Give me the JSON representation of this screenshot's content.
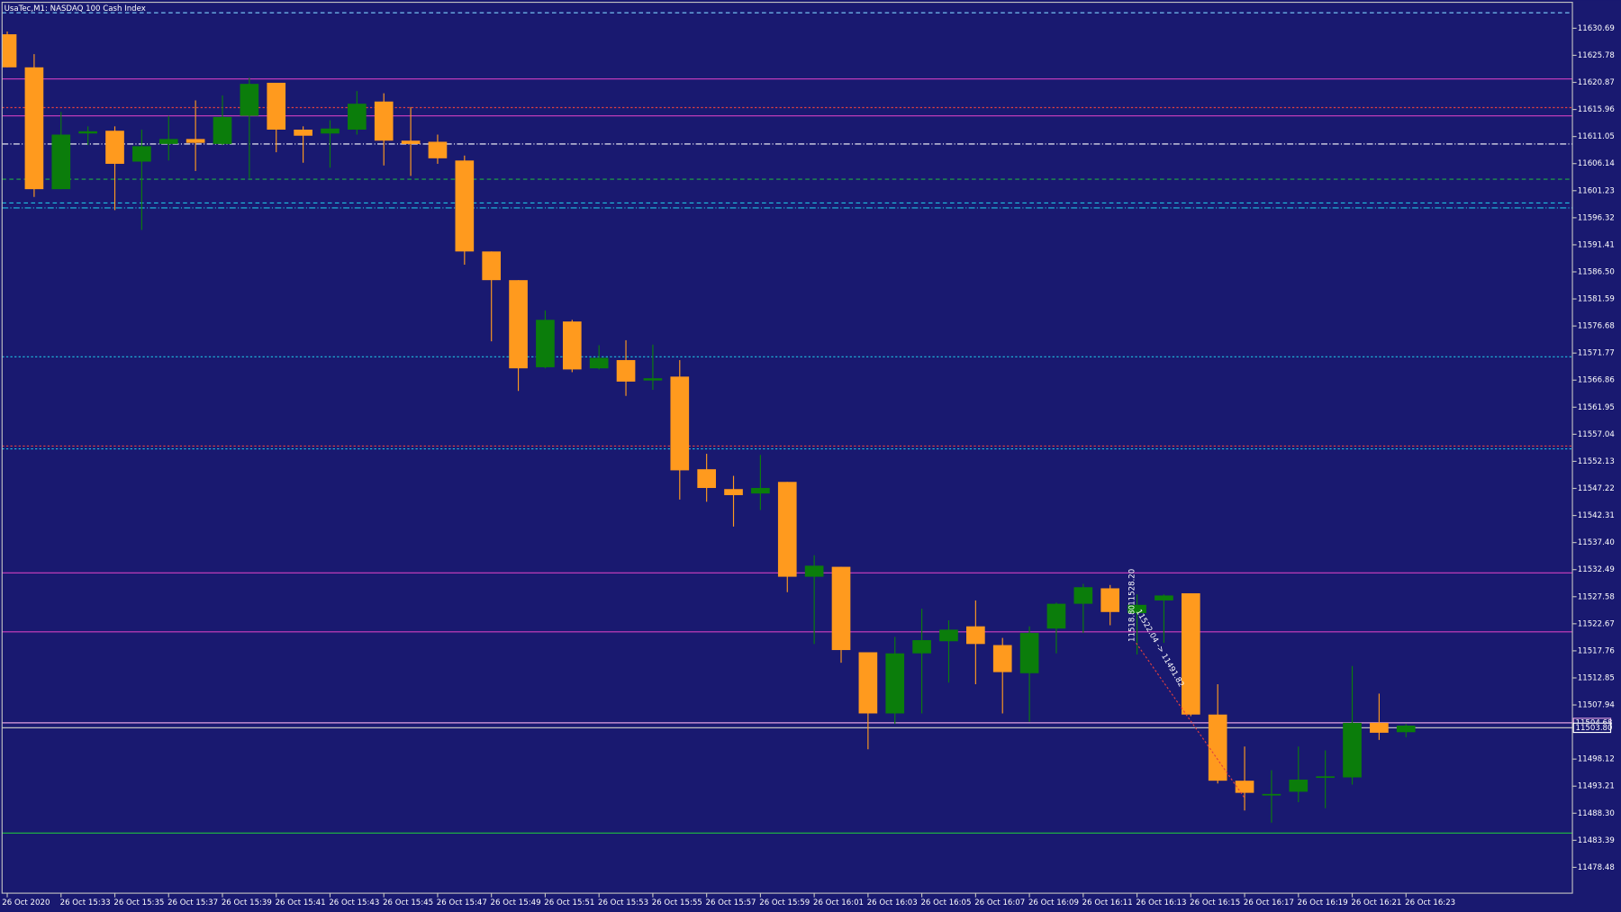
{
  "chart_data": {
    "type": "candlestick",
    "title": "UsaTec,M1:  NASDAQ 100 Cash Index",
    "up_color": "#0b7d0b",
    "down_color": "#ff9a1e",
    "categories": [
      "26 Oct 2020",
      null,
      "26 Oct 15:33",
      null,
      "26 Oct 15:35",
      null,
      "26 Oct 15:37",
      null,
      "26 Oct 15:39",
      null,
      "26 Oct 15:41",
      null,
      "26 Oct 15:43",
      null,
      "26 Oct 15:45",
      null,
      "26 Oct 15:47",
      null,
      "26 Oct 15:49",
      null,
      "26 Oct 15:51",
      null,
      "26 Oct 15:53",
      null,
      "26 Oct 15:55",
      null,
      "26 Oct 15:57",
      null,
      "26 Oct 15:59",
      null,
      "26 Oct 16:01",
      null,
      "26 Oct 16:03",
      null,
      "26 Oct 16:05",
      null,
      "26 Oct 16:07",
      null,
      "26 Oct 16:09",
      null,
      "26 Oct 16:11",
      null,
      "26 Oct 16:13",
      null,
      "26 Oct 16:15",
      null,
      "26 Oct 16:17",
      null,
      "26 Oct 16:19",
      null,
      "26 Oct 16:21",
      null,
      "26 Oct 16:23"
    ],
    "open": [
      11629.6,
      11623.6,
      11601.5,
      11611.6,
      11612.1,
      11606.5,
      11609.7,
      11610.6,
      11609.7,
      11614.8,
      11620.8,
      11612.3,
      11611.6,
      11612.3,
      11617.4,
      11610.3,
      11610.1,
      11606.7,
      11590.2,
      11585.0,
      11569.2,
      11577.5,
      11569.0,
      11570.5,
      11566.8,
      11567.5,
      11550.7,
      11547.1,
      11546.3,
      11548.4,
      11531.2,
      11533.0,
      11517.5,
      11506.4,
      11517.3,
      11519.5,
      11522.2,
      11518.8,
      11513.7,
      11521.8,
      11526.3,
      11529.1,
      11524.6,
      11526.9,
      11528.2,
      11506.2,
      11494.2,
      11491.6,
      11492.2,
      11494.8,
      11494.8,
      11504.7,
      11503.0
    ],
    "high": [
      11630.1,
      11626.0,
      11615.5,
      11612.9,
      11612.9,
      11612.3,
      11614.8,
      11617.6,
      11618.5,
      11621.7,
      11620.8,
      11612.9,
      11614.0,
      11619.3,
      11618.9,
      11616.4,
      11611.4,
      11607.6,
      11590.2,
      11585.0,
      11579.5,
      11577.8,
      11573.2,
      11574.1,
      11573.3,
      11570.5,
      11553.5,
      11549.5,
      11553.3,
      11548.4,
      11535.1,
      11533.0,
      11517.5,
      11520.3,
      11525.4,
      11523.3,
      11526.9,
      11520.1,
      11522.2,
      11526.5,
      11529.9,
      11529.7,
      11528.0,
      11528.0,
      11528.2,
      11511.7,
      11500.4,
      11496.1,
      11500.4,
      11499.7,
      11515.0,
      11510.0,
      11504.5
    ],
    "low": [
      11623.6,
      11600.1,
      11601.5,
      11609.5,
      11597.7,
      11594.1,
      11606.7,
      11604.8,
      11609.5,
      11603.5,
      11608.2,
      11606.3,
      11605.4,
      11611.4,
      11605.8,
      11603.9,
      11606.1,
      11587.8,
      11573.9,
      11564.9,
      11569.0,
      11568.3,
      11568.8,
      11564.0,
      11565.1,
      11545.2,
      11544.8,
      11540.3,
      11543.3,
      11528.4,
      11519.0,
      11515.6,
      11499.9,
      11504.5,
      11506.4,
      11512.0,
      11511.7,
      11506.4,
      11504.9,
      11517.3,
      11521.0,
      11522.4,
      11517.1,
      11519.2,
      11505.9,
      11493.7,
      11488.8,
      11486.6,
      11490.3,
      11489.2,
      11493.5,
      11501.6,
      11502.1
    ],
    "close": [
      11623.6,
      11601.5,
      11611.4,
      11612.0,
      11606.1,
      11609.3,
      11610.6,
      11609.9,
      11614.6,
      11620.6,
      11612.3,
      11611.2,
      11612.5,
      11617.0,
      11610.3,
      11609.7,
      11607.1,
      11590.2,
      11585.0,
      11569.0,
      11577.8,
      11568.8,
      11570.9,
      11566.6,
      11567.2,
      11550.5,
      11547.3,
      11546.0,
      11547.3,
      11531.2,
      11533.2,
      11517.9,
      11506.4,
      11517.3,
      11519.7,
      11521.6,
      11519.0,
      11513.9,
      11521.0,
      11526.3,
      11529.3,
      11524.8,
      11526.1,
      11527.8,
      11506.2,
      11494.2,
      11492.0,
      11491.8,
      11494.4,
      11495.0,
      11504.7,
      11502.9,
      11504.2
    ],
    "ylim": [
      11473.8,
      11635.4
    ],
    "yticks": [
      11630.69,
      11625.78,
      11620.87,
      11615.96,
      11611.05,
      11606.14,
      11601.23,
      11596.32,
      11591.41,
      {
        "value": 11586.5,
        "label": "11586.50"
      },
      11581.59,
      11576.68,
      11571.77,
      11566.86,
      11561.95,
      11557.04,
      11552.13,
      11547.22,
      11542.31,
      {
        "value": 11537.4,
        "label": "11537.40"
      },
      11532.49,
      11527.58,
      11522.67,
      11517.76,
      11512.85,
      11507.94,
      11498.12,
      11493.21,
      {
        "value": 11488.3,
        "label": "11488.30"
      },
      11483.39,
      11478.48
    ],
    "levels": [
      {
        "value": 11633.5,
        "color": "#7fd4ff",
        "style": "dashed"
      },
      {
        "value": 11621.5,
        "color": "#d040c0",
        "style": "solid"
      },
      {
        "value": 11616.3,
        "color": "#e04040",
        "style": "dotted"
      },
      {
        "value": 11614.8,
        "color": "#d040c0",
        "style": "solid"
      },
      {
        "value": 11609.7,
        "color": "#ffffff",
        "style": "dashdot"
      },
      {
        "value": 11603.3,
        "color": "#20b040",
        "style": "dashed"
      },
      {
        "value": 11599.0,
        "color": "#20c0e0",
        "style": "dashed"
      },
      {
        "value": 11598.1,
        "color": "#20c0e0",
        "style": "dashdot"
      },
      {
        "value": 11571.1,
        "color": "#20c0e0",
        "style": "dotted"
      },
      {
        "value": 11554.9,
        "color": "#e04040",
        "style": "dotted"
      },
      {
        "value": 11554.4,
        "color": "#20c0e0",
        "style": "dotted"
      },
      {
        "value": 11531.9,
        "color": "#d040c0",
        "style": "solid"
      },
      {
        "value": 11521.2,
        "color": "#d040c0",
        "style": "solid"
      },
      {
        "value": 11504.7,
        "color": "#e0a0e0",
        "style": "solid"
      },
      {
        "value": 11503.8,
        "color": "#c0c0c0",
        "style": "solid"
      },
      {
        "value": 11484.7,
        "color": "#20c040",
        "style": "solid"
      }
    ],
    "price_labels": [
      11504.68,
      {
        "value": 11503.8,
        "label": "11503.80"
      }
    ],
    "annotations": [
      "11528.20",
      "11518.80",
      "11522.04 -> 11491.82"
    ]
  }
}
